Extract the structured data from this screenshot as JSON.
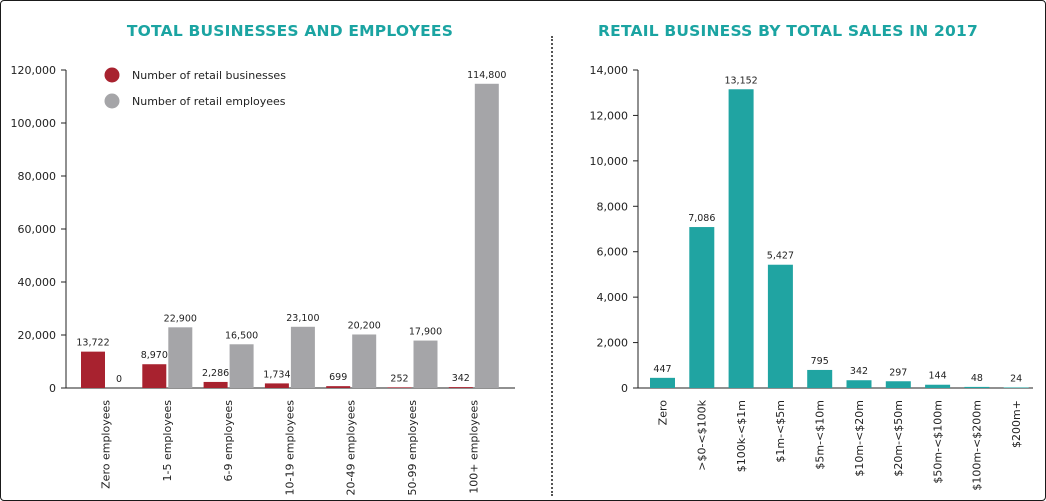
{
  "colors": {
    "businesses": "#a8222f",
    "employees": "#a5a5a8",
    "sales": "#20a4a2",
    "title": "#1ba4a2"
  },
  "chart_data": [
    {
      "type": "bar",
      "title": "TOTAL BUSINESSES AND EMPLOYEES",
      "categories": [
        "Zero employees",
        "1-5 employees",
        "6-9 employees",
        "10-19 employees",
        "20-49 employees",
        "50-99 employees",
        "100+ employees"
      ],
      "series": [
        {
          "name": "Number of retail businesses",
          "values": [
            13722,
            8970,
            2286,
            1734,
            699,
            252,
            342
          ],
          "labels": [
            "13,722",
            "8,970",
            "2,286",
            "1,734",
            "699",
            "252",
            "342"
          ]
        },
        {
          "name": "Number of retail employees",
          "values": [
            0,
            22900,
            16500,
            23100,
            20200,
            17900,
            114800
          ],
          "labels": [
            "0",
            "22,900",
            "16,500",
            "23,100",
            "20,200",
            "17,900",
            "114,800"
          ]
        }
      ],
      "ylim": [
        0,
        120000
      ],
      "yticks": [
        0,
        20000,
        40000,
        60000,
        80000,
        100000,
        120000
      ],
      "ytick_labels": [
        "0",
        "20,000",
        "40,000",
        "60,000",
        "80,000",
        "100,000",
        "120,000"
      ],
      "legend_position": "top-left",
      "grid": false
    },
    {
      "type": "bar",
      "title": "RETAIL BUSINESS BY TOTAL SALES IN 2017",
      "categories": [
        "Zero",
        ">$0-<$100k",
        "$100k-<$1m",
        "$1m-<$5m",
        "$5m-<$10m",
        "$10m-<$20m",
        "$20m-<$50m",
        "$50m-<$100m",
        "$100m-<$200m",
        "$200m+"
      ],
      "values": [
        447,
        7086,
        13152,
        5427,
        795,
        342,
        297,
        144,
        48,
        24
      ],
      "labels": [
        "447",
        "7,086",
        "13,152",
        "5,427",
        "795",
        "342",
        "297",
        "144",
        "48",
        "24"
      ],
      "ylim": [
        0,
        14000
      ],
      "yticks": [
        0,
        2000,
        4000,
        6000,
        8000,
        10000,
        12000,
        14000
      ],
      "ytick_labels": [
        "0",
        "2,000",
        "4,000",
        "6,000",
        "8,000",
        "10,000",
        "12,000",
        "14,000"
      ],
      "grid": false
    }
  ]
}
